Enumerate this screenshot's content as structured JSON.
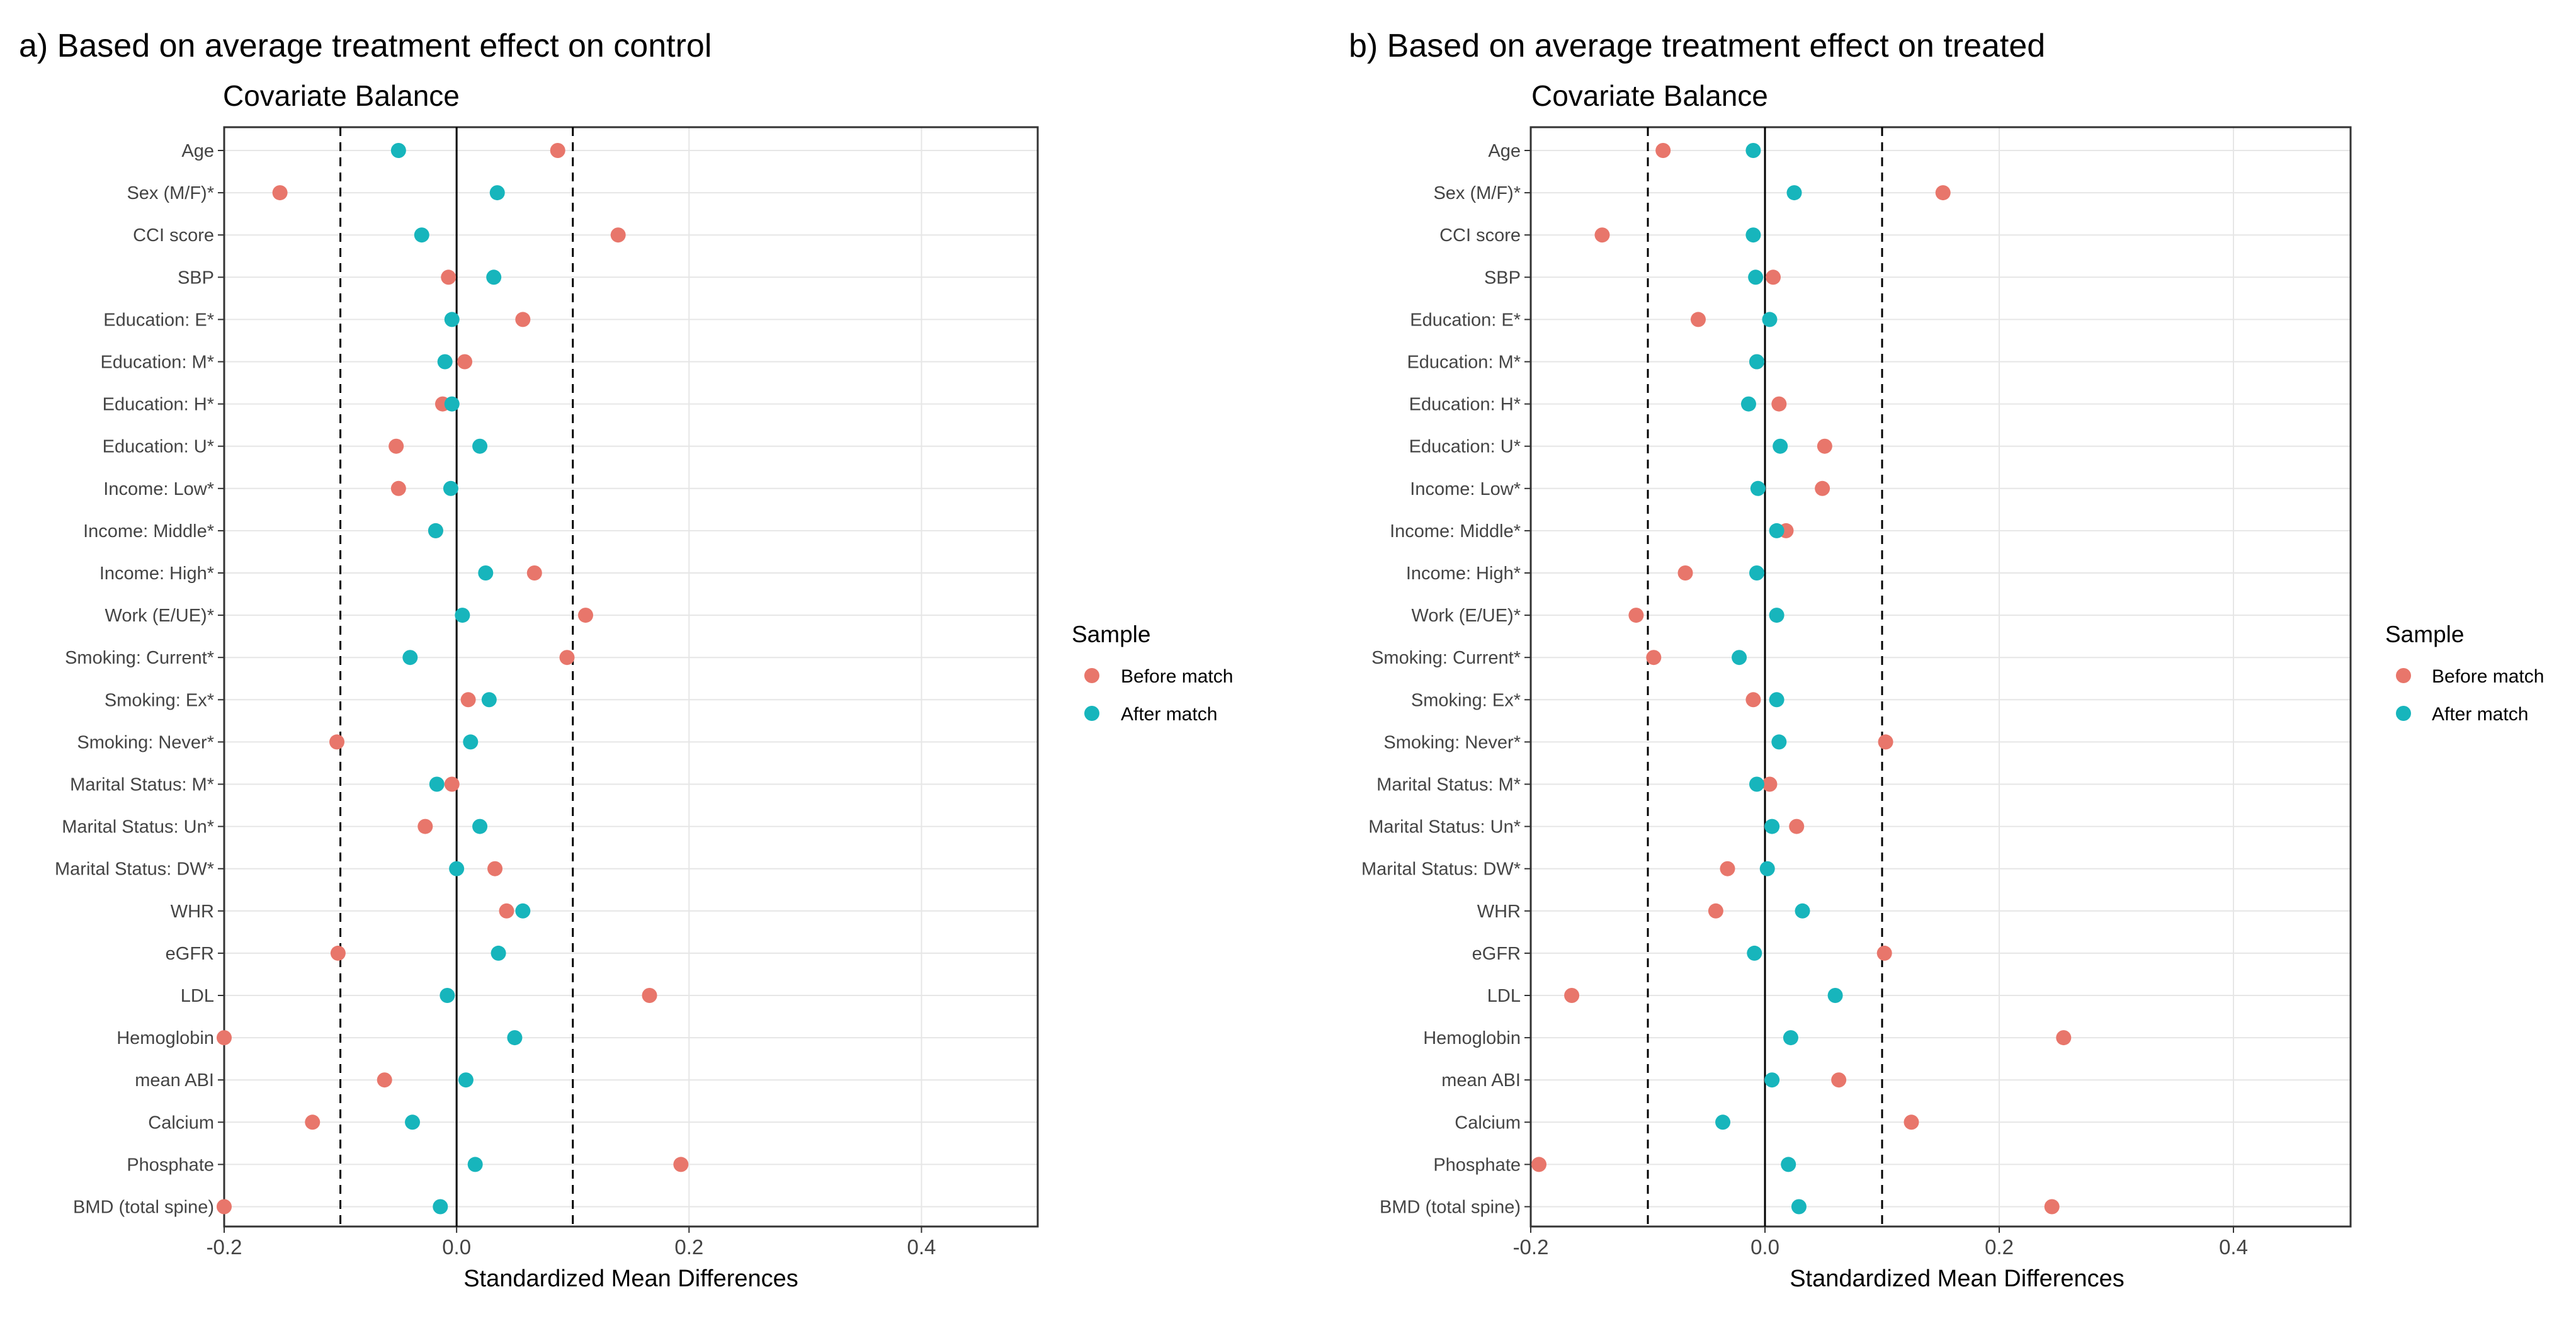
{
  "colors": {
    "before": "#e8766b",
    "after": "#17b5bc",
    "grid": "#e6e6e6",
    "panel_border": "#333333"
  },
  "legend": {
    "title": "Sample",
    "before_label": "Before match",
    "after_label": "After match"
  },
  "chart_data": [
    {
      "type": "scatter",
      "panel_title": "a) Based on average treatment effect on control",
      "title": "Covariate Balance",
      "xlabel": "Standardized Mean Differences",
      "xlim": [
        -0.2,
        0.5
      ],
      "xticks": [
        -0.2,
        0.0,
        0.2,
        0.4
      ],
      "xtick_labels": [
        "-0.2",
        "0.0",
        "0.2",
        "0.4"
      ],
      "threshold_lines": [
        -0.1,
        0.1
      ],
      "zero_line": 0,
      "categories": [
        "Age",
        "Sex (M/F)*",
        "CCI score",
        "SBP",
        "Education: E*",
        "Education: M*",
        "Education: H*",
        "Education: U*",
        "Income: Low*",
        "Income: Middle*",
        "Income: High*",
        "Work (E/UE)*",
        "Smoking: Current*",
        "Smoking: Ex*",
        "Smoking: Never*",
        "Marital Status: M*",
        "Marital Status: Un*",
        "Marital Status: DW*",
        "WHR",
        "eGFR",
        "LDL",
        "Hemoglobin",
        "mean ABI",
        "Calcium",
        "Phosphate",
        "BMD (total spine)"
      ],
      "series": [
        {
          "name": "Before match",
          "values": [
            0.087,
            -0.152,
            0.139,
            -0.007,
            0.057,
            0.007,
            -0.012,
            -0.052,
            -0.05,
            -0.018,
            0.067,
            0.111,
            0.095,
            0.01,
            -0.103,
            -0.004,
            -0.027,
            0.033,
            0.043,
            -0.102,
            0.166,
            -0.2,
            -0.062,
            -0.124,
            0.193,
            -0.2
          ]
        },
        {
          "name": "After match",
          "values": [
            -0.05,
            0.035,
            -0.03,
            0.032,
            -0.004,
            -0.01,
            -0.004,
            0.02,
            -0.005,
            -0.018,
            0.025,
            0.005,
            -0.04,
            0.028,
            0.012,
            -0.017,
            0.02,
            0.0,
            0.057,
            0.036,
            -0.008,
            0.05,
            0.008,
            -0.038,
            0.016,
            -0.014
          ]
        }
      ]
    },
    {
      "type": "scatter",
      "panel_title": "b) Based on average treatment effect on treated",
      "title": "Covariate Balance",
      "xlabel": "Standardized Mean Differences",
      "xlim": [
        -0.2,
        0.5
      ],
      "xticks": [
        -0.2,
        0.0,
        0.2,
        0.4
      ],
      "xtick_labels": [
        "-0.2",
        "0.0",
        "0.2",
        "0.4"
      ],
      "threshold_lines": [
        -0.1,
        0.1
      ],
      "zero_line": 0,
      "categories": [
        "Age",
        "Sex (M/F)*",
        "CCI score",
        "SBP",
        "Education: E*",
        "Education: M*",
        "Education: H*",
        "Education: U*",
        "Income: Low*",
        "Income: Middle*",
        "Income: High*",
        "Work (E/UE)*",
        "Smoking: Current*",
        "Smoking: Ex*",
        "Smoking: Never*",
        "Marital Status: M*",
        "Marital Status: Un*",
        "Marital Status: DW*",
        "WHR",
        "eGFR",
        "LDL",
        "Hemoglobin",
        "mean ABI",
        "Calcium",
        "Phosphate",
        "BMD (total spine)"
      ],
      "series": [
        {
          "name": "Before match",
          "values": [
            -0.087,
            0.152,
            -0.139,
            0.007,
            -0.057,
            -0.007,
            0.012,
            0.051,
            0.049,
            0.018,
            -0.068,
            -0.11,
            -0.095,
            -0.01,
            0.103,
            0.004,
            0.027,
            -0.032,
            -0.042,
            0.102,
            -0.165,
            0.255,
            0.063,
            0.125,
            -0.193,
            0.245
          ]
        },
        {
          "name": "After match",
          "values": [
            -0.01,
            0.025,
            -0.01,
            -0.008,
            0.004,
            -0.007,
            -0.014,
            0.013,
            -0.006,
            0.01,
            -0.007,
            0.01,
            -0.022,
            0.01,
            0.012,
            -0.007,
            0.006,
            0.002,
            0.032,
            -0.009,
            0.06,
            0.022,
            0.006,
            -0.036,
            0.02,
            0.029
          ]
        }
      ]
    }
  ]
}
